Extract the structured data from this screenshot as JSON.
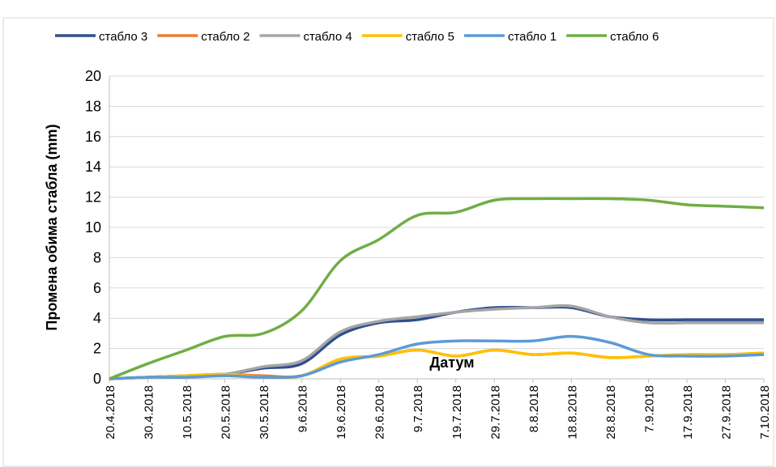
{
  "chart_data": {
    "type": "line",
    "ylabel": "Промена обима стабла (mm)",
    "annotation": "Датум",
    "categories": [
      "20.4.2018",
      "30.4.2018",
      "10.5.2018",
      "20.5.2018",
      "30.5.2018",
      "9.6.2018",
      "19.6.2018",
      "29.6.2018",
      "9.7.2018",
      "19.7.2018",
      "29.7.2018",
      "8.8.2018",
      "18.8.2018",
      "28.8.2018",
      "7.9.2018",
      "17.9.2018",
      "27.9.2018",
      "7.10.2018"
    ],
    "series": [
      {
        "name": "стабло 3",
        "color": "#2f4f8f",
        "values": [
          0,
          0.1,
          0.2,
          0.3,
          0.7,
          1.0,
          2.9,
          3.7,
          3.9,
          4.4,
          4.7,
          4.7,
          4.7,
          4.1,
          3.9,
          3.9,
          3.9,
          3.9
        ]
      },
      {
        "name": "стабло 2",
        "color": "#ed7d31",
        "values": [
          0,
          0.1,
          0.2,
          0.3,
          0.2,
          0.2,
          1.3,
          1.5,
          1.9,
          1.5,
          1.9,
          1.6,
          1.7,
          1.4,
          1.5,
          1.6,
          1.6,
          1.7
        ]
      },
      {
        "name": "стабло 4",
        "color": "#a5a5a5",
        "values": [
          0,
          0.1,
          0.2,
          0.3,
          0.8,
          1.2,
          3.1,
          3.8,
          4.1,
          4.4,
          4.6,
          4.7,
          4.8,
          4.1,
          3.7,
          3.7,
          3.7,
          3.7
        ]
      },
      {
        "name": "стабло 5",
        "color": "#ffc000",
        "values": [
          0,
          0.1,
          0.2,
          0.3,
          0.1,
          0.2,
          1.3,
          1.5,
          1.9,
          1.5,
          1.9,
          1.6,
          1.7,
          1.4,
          1.5,
          1.6,
          1.6,
          1.7
        ]
      },
      {
        "name": "стабло 1",
        "color": "#5b9bd5",
        "values": [
          0,
          0.1,
          0.1,
          0.2,
          0.1,
          0.2,
          1.1,
          1.6,
          2.3,
          2.5,
          2.5,
          2.5,
          2.8,
          2.4,
          1.6,
          1.5,
          1.5,
          1.6
        ]
      },
      {
        "name": "стабло 6",
        "color": "#70ad47",
        "values": [
          0,
          1.0,
          1.9,
          2.8,
          3.0,
          4.5,
          7.8,
          9.2,
          10.8,
          11.0,
          11.8,
          11.9,
          11.9,
          11.9,
          11.8,
          11.5,
          11.4,
          11.3
        ]
      }
    ],
    "ylim": [
      0,
      20
    ],
    "yticks": [
      0,
      2,
      4,
      6,
      8,
      10,
      12,
      14,
      16,
      18,
      20
    ],
    "grid": true,
    "legend": "top"
  }
}
